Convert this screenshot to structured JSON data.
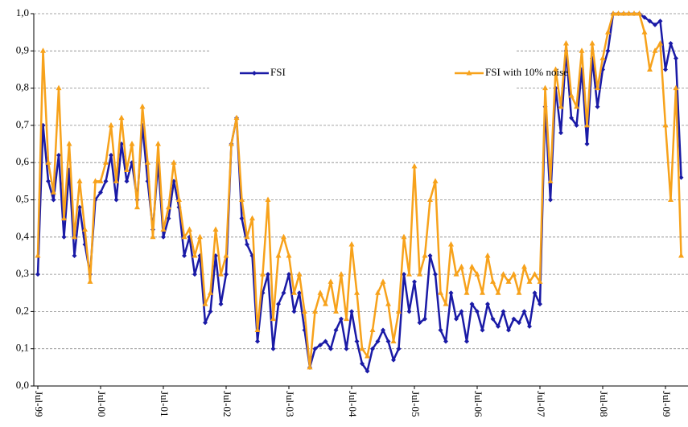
{
  "chart_data": {
    "type": "line",
    "categories": [
      "Jul-99",
      null,
      null,
      null,
      null,
      null,
      null,
      null,
      null,
      null,
      null,
      null,
      "Jul-00",
      null,
      null,
      null,
      null,
      null,
      null,
      null,
      null,
      null,
      null,
      null,
      "Jul-01",
      null,
      null,
      null,
      null,
      null,
      null,
      null,
      null,
      null,
      null,
      null,
      "Jul-02",
      null,
      null,
      null,
      null,
      null,
      null,
      null,
      null,
      null,
      null,
      null,
      "Jul-03",
      null,
      null,
      null,
      null,
      null,
      null,
      null,
      null,
      null,
      null,
      null,
      "Jul-04",
      null,
      null,
      null,
      null,
      null,
      null,
      null,
      null,
      null,
      null,
      null,
      "Jul-05",
      null,
      null,
      null,
      null,
      null,
      null,
      null,
      null,
      null,
      null,
      null,
      "Jul-06",
      null,
      null,
      null,
      null,
      null,
      null,
      null,
      null,
      null,
      null,
      null,
      "Jul-07",
      null,
      null,
      null,
      null,
      null,
      null,
      null,
      null,
      null,
      null,
      null,
      "Jul-08",
      null,
      null,
      null,
      null,
      null,
      null,
      null,
      null,
      null,
      null,
      null,
      "Jul-09",
      null,
      null,
      null
    ],
    "series": [
      {
        "name": "FSI",
        "color": "#1a1aa6",
        "values": [
          0.3,
          0.7,
          0.55,
          0.5,
          0.62,
          0.4,
          0.58,
          0.35,
          0.48,
          0.38,
          0.3,
          0.5,
          0.52,
          0.55,
          0.62,
          0.5,
          0.65,
          0.55,
          0.6,
          0.5,
          0.7,
          0.55,
          0.42,
          0.6,
          0.4,
          0.45,
          0.55,
          0.48,
          0.35,
          0.4,
          0.3,
          0.35,
          0.17,
          0.2,
          0.35,
          0.22,
          0.3,
          0.65,
          0.72,
          0.45,
          0.38,
          0.35,
          0.12,
          0.25,
          0.3,
          0.1,
          0.22,
          0.25,
          0.3,
          0.2,
          0.25,
          0.15,
          0.05,
          0.1,
          0.11,
          0.12,
          0.1,
          0.15,
          0.18,
          0.1,
          0.2,
          0.12,
          0.06,
          0.04,
          0.1,
          0.12,
          0.15,
          0.12,
          0.07,
          0.1,
          0.3,
          0.2,
          0.28,
          0.17,
          0.18,
          0.35,
          0.3,
          0.15,
          0.12,
          0.25,
          0.18,
          0.2,
          0.12,
          0.22,
          0.2,
          0.15,
          0.22,
          0.18,
          0.16,
          0.2,
          0.15,
          0.18,
          0.17,
          0.2,
          0.16,
          0.25,
          0.22,
          0.75,
          0.5,
          0.8,
          0.68,
          0.9,
          0.72,
          0.7,
          0.85,
          0.65,
          0.88,
          0.75,
          0.85,
          0.9,
          1.0,
          1.0,
          1.0,
          1.0,
          1.0,
          1.0,
          0.99,
          0.98,
          0.97,
          0.98,
          0.85,
          0.92,
          0.88,
          0.56
        ]
      },
      {
        "name": "FSI with 10% noise",
        "color": "#f7a21b",
        "values": [
          0.35,
          0.9,
          0.6,
          0.52,
          0.8,
          0.45,
          0.65,
          0.4,
          0.55,
          0.42,
          0.28,
          0.55,
          0.55,
          0.6,
          0.7,
          0.55,
          0.72,
          0.58,
          0.65,
          0.48,
          0.75,
          0.6,
          0.4,
          0.65,
          0.42,
          0.48,
          0.6,
          0.5,
          0.4,
          0.42,
          0.35,
          0.4,
          0.22,
          0.25,
          0.42,
          0.3,
          0.35,
          0.65,
          0.72,
          0.5,
          0.4,
          0.45,
          0.15,
          0.3,
          0.5,
          0.18,
          0.35,
          0.4,
          0.35,
          0.25,
          0.3,
          0.2,
          0.05,
          0.2,
          0.25,
          0.22,
          0.28,
          0.2,
          0.3,
          0.18,
          0.38,
          0.25,
          0.1,
          0.08,
          0.15,
          0.25,
          0.28,
          0.22,
          0.12,
          0.2,
          0.4,
          0.3,
          0.59,
          0.3,
          0.35,
          0.5,
          0.55,
          0.25,
          0.22,
          0.38,
          0.3,
          0.32,
          0.25,
          0.32,
          0.3,
          0.25,
          0.35,
          0.28,
          0.25,
          0.3,
          0.28,
          0.3,
          0.25,
          0.32,
          0.28,
          0.3,
          0.28,
          0.8,
          0.55,
          0.85,
          0.75,
          0.92,
          0.78,
          0.75,
          0.9,
          0.7,
          0.92,
          0.8,
          0.88,
          0.95,
          1.0,
          1.0,
          1.0,
          1.0,
          1.0,
          1.0,
          0.95,
          0.85,
          0.9,
          0.92,
          0.7,
          0.5,
          0.8,
          0.35
        ]
      }
    ],
    "ylim": [
      0,
      1
    ],
    "yticks": [
      {
        "value": 0,
        "label": "0,0"
      },
      {
        "value": 0.1,
        "label": "0,1"
      },
      {
        "value": 0.2,
        "label": "0,2"
      },
      {
        "value": 0.3,
        "label": "0,3"
      },
      {
        "value": 0.4,
        "label": "0,4"
      },
      {
        "value": 0.5,
        "label": "0,5"
      },
      {
        "value": 0.6,
        "label": "0,6"
      },
      {
        "value": 0.7,
        "label": "0,7"
      },
      {
        "value": 0.8,
        "label": "0,8"
      },
      {
        "value": 0.9,
        "label": "0,9"
      },
      {
        "value": 1,
        "label": "1,0"
      }
    ],
    "grid": true
  }
}
